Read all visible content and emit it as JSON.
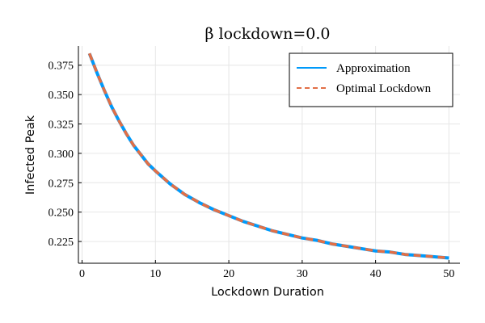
{
  "chart_data": {
    "type": "line",
    "title": "β lockdown=0.0",
    "xlabel": "Lockdown Duration",
    "ylabel": "Infected Peak",
    "xlim": [
      -0.5,
      51.5
    ],
    "ylim": [
      0.2065,
      0.3913
    ],
    "x_ticks": [
      0,
      10,
      20,
      30,
      40,
      50
    ],
    "x_tick_labels": [
      "0",
      "10",
      "20",
      "30",
      "40",
      "50"
    ],
    "y_ticks": [
      0.225,
      0.25,
      0.275,
      0.3,
      0.325,
      0.35,
      0.375
    ],
    "y_tick_labels": [
      "0.225",
      "0.250",
      "0.275",
      "0.300",
      "0.325",
      "0.350",
      "0.375"
    ],
    "grid": true,
    "legend_position": "top-right",
    "series": [
      {
        "name": "Approximation",
        "color": "#009AFA",
        "style": "solid",
        "x": [
          1,
          2,
          3,
          4,
          5,
          6,
          7,
          8,
          9,
          10,
          12,
          14,
          16,
          18,
          20,
          22,
          24,
          26,
          28,
          30,
          32,
          34,
          36,
          38,
          40,
          42,
          44,
          46,
          48,
          50
        ],
        "y": [
          0.385,
          0.369,
          0.354,
          0.34,
          0.328,
          0.317,
          0.307,
          0.299,
          0.291,
          0.285,
          0.274,
          0.265,
          0.258,
          0.252,
          0.247,
          0.242,
          0.238,
          0.234,
          0.231,
          0.228,
          0.226,
          0.223,
          0.221,
          0.219,
          0.217,
          0.216,
          0.214,
          0.213,
          0.212,
          0.211
        ]
      },
      {
        "name": "Optimal Lockdown",
        "color": "#E26F46",
        "style": "dashed",
        "x": [
          1,
          2,
          3,
          4,
          5,
          6,
          7,
          8,
          9,
          10,
          12,
          14,
          16,
          18,
          20,
          22,
          24,
          26,
          28,
          30,
          32,
          34,
          36,
          38,
          40,
          42,
          44,
          46,
          48,
          50
        ],
        "y": [
          0.385,
          0.369,
          0.354,
          0.34,
          0.328,
          0.317,
          0.307,
          0.299,
          0.291,
          0.285,
          0.274,
          0.265,
          0.258,
          0.252,
          0.247,
          0.242,
          0.238,
          0.234,
          0.231,
          0.228,
          0.226,
          0.223,
          0.221,
          0.219,
          0.217,
          0.216,
          0.214,
          0.213,
          0.212,
          0.211
        ]
      }
    ]
  }
}
